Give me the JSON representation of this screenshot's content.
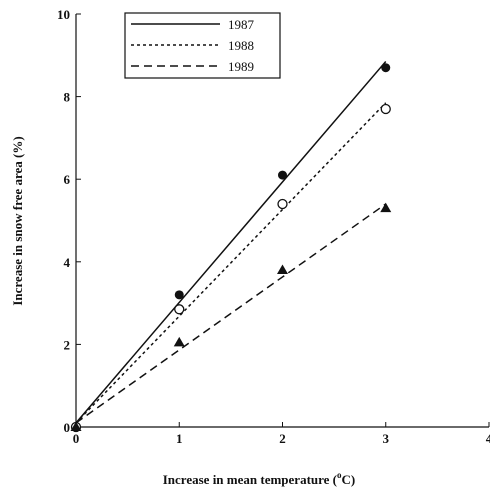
{
  "chart_data": {
    "type": "scatter",
    "xlabel": "Increase in mean temperature (",
    "xlabel_sup": "o",
    "xlabel_unit": "C)",
    "ylabel": "Increase in snow free area (%)",
    "xlim": [
      0,
      4
    ],
    "ylim": [
      0,
      10
    ],
    "xticks": [
      "0",
      "1",
      "2",
      "3",
      "4"
    ],
    "yticks": [
      "0",
      "2",
      "4",
      "6",
      "8",
      "10"
    ],
    "grid": false,
    "legend_position": "top-left",
    "series": [
      {
        "name": "1987",
        "marker": "filled-circle",
        "line_style": "solid",
        "points": [
          [
            0,
            0
          ],
          [
            1,
            3.2
          ],
          [
            2,
            6.1
          ],
          [
            3,
            8.7
          ]
        ],
        "fit_line": [
          [
            0,
            0.1
          ],
          [
            3,
            8.85
          ]
        ]
      },
      {
        "name": "1988",
        "marker": "open-circle",
        "line_style": "dotted",
        "points": [
          [
            0,
            0
          ],
          [
            1,
            2.85
          ],
          [
            2,
            5.4
          ],
          [
            3,
            7.7
          ]
        ],
        "fit_line": [
          [
            0,
            0.1
          ],
          [
            3,
            7.85
          ]
        ]
      },
      {
        "name": "1989",
        "marker": "filled-triangle",
        "line_style": "dashed",
        "points": [
          [
            0,
            0
          ],
          [
            1,
            2.05
          ],
          [
            2,
            3.8
          ],
          [
            3,
            5.3
          ]
        ],
        "fit_line": [
          [
            0,
            0.1
          ],
          [
            3,
            5.4
          ]
        ]
      }
    ]
  }
}
